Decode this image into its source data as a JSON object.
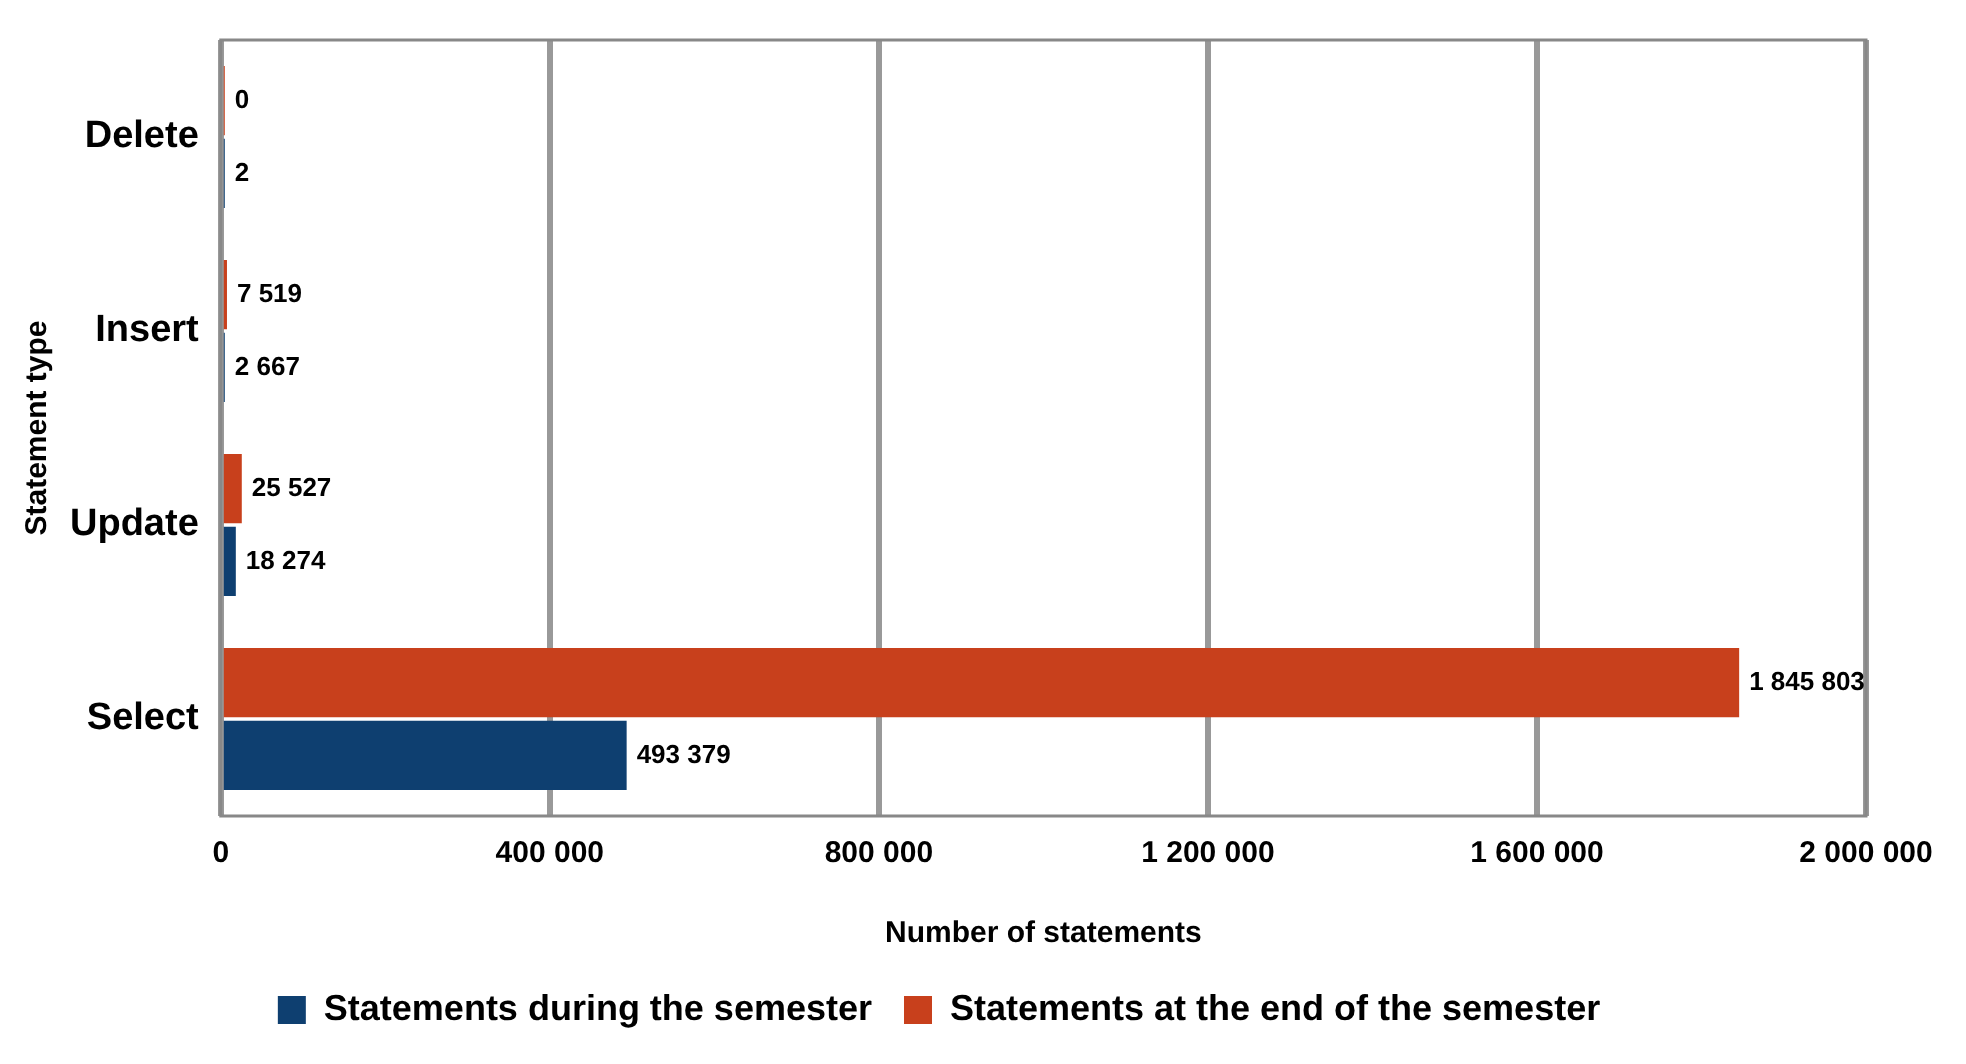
{
  "chart_data": {
    "type": "bar",
    "orientation": "horizontal",
    "categories": [
      "Delete",
      "Insert",
      "Update",
      "Select"
    ],
    "xlabel": "Number of statements",
    "ylabel": "Statement type",
    "series": [
      {
        "name": "Statements during the semester",
        "color": "#0e3f70",
        "values": [
          2,
          2667,
          18274,
          493379
        ],
        "value_labels": [
          "2",
          "2 667",
          "18 274",
          "493 379"
        ]
      },
      {
        "name": "Statements at the end of the semester",
        "color": "#c8401c",
        "values": [
          0,
          7519,
          25527,
          1845803
        ],
        "value_labels": [
          "0",
          "7 519",
          "25 527",
          "1 845 803"
        ]
      }
    ],
    "xlim": [
      0,
      2000000
    ],
    "xticks": [
      0,
      {
        "value": 400000,
        "label": "400 000"
      },
      {
        "value": 800000,
        "label": "800 000"
      },
      {
        "value": 1200000,
        "label": "1 200 000"
      },
      {
        "value": 1600000,
        "label": "1 600 000"
      },
      {
        "value": 2000000,
        "label": "2 000 000"
      }
    ],
    "grid": "x",
    "legend": "bottom"
  }
}
